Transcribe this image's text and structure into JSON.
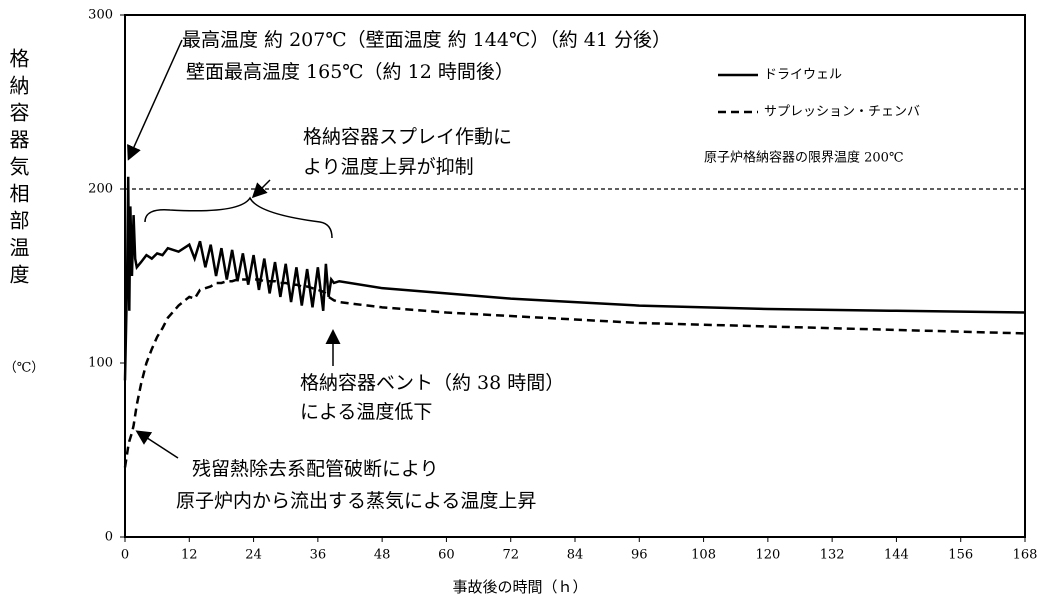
{
  "chart_data": {
    "type": "line",
    "y_label": "格納容器気相部温度",
    "y_unit": "（℃）",
    "x_label": "事故後の時間（ｈ）",
    "x": [
      0,
      0.4,
      0.6,
      0.8,
      1.0,
      1.3,
      1.6,
      1.9,
      2.2,
      3,
      4,
      5,
      6,
      7,
      8,
      10,
      12,
      13,
      14,
      15,
      16,
      17,
      18,
      19,
      20,
      21,
      22,
      23,
      24,
      25,
      26,
      27,
      28,
      29,
      30,
      31,
      32,
      33,
      34,
      35,
      36,
      37,
      37.5,
      38,
      38.5,
      39,
      40,
      48,
      60,
      72,
      84,
      96,
      120,
      144,
      168
    ],
    "series": [
      {
        "name": "ドライウェル",
        "color": "#000000",
        "line_style": "solid",
        "values": [
          90,
          150,
          207,
          130,
          190,
          150,
          185,
          160,
          155,
          158,
          162,
          160,
          163,
          162,
          166,
          164,
          168,
          160,
          170,
          155,
          168,
          150,
          166,
          148,
          165,
          147,
          163,
          145,
          162,
          142,
          160,
          140,
          158,
          138,
          157,
          135,
          155,
          133,
          154,
          132,
          155,
          130,
          157,
          138,
          148,
          146,
          147,
          143,
          140,
          137,
          135,
          133,
          131,
          130,
          129
        ]
      },
      {
        "name": "サプレッション・チェンバ",
        "color": "#000000",
        "line_style": "dashed",
        "values": [
          40,
          48,
          52,
          55,
          57,
          60,
          64,
          70,
          76,
          88,
          100,
          108,
          115,
          120,
          126,
          133,
          138,
          137,
          142,
          143,
          144,
          146,
          146,
          147,
          147,
          148,
          148,
          148,
          148,
          148,
          147,
          147,
          147,
          146,
          146,
          145,
          145,
          144,
          144,
          143,
          142,
          141,
          140,
          138,
          137,
          136,
          135,
          132,
          129,
          127,
          125,
          123,
          121,
          119,
          117
        ]
      }
    ],
    "reference_line": {
      "value": 200,
      "line_style": "dashed",
      "color": "#000000"
    },
    "annotations": [
      "最高温度 約 207℃（壁面温度 約 144℃）（約 41 分後）",
      "壁面最高温度 165℃（約 12 時間後）",
      "格納容器スプレイ作動に",
      "より温度上昇が抑制",
      "原子炉格納容器の限界温度 200℃",
      "格納容器ベント（約 38 時間）",
      "による温度低下",
      "残留熱除去系配管破断により",
      "原子炉内から流出する蒸気による温度上昇"
    ],
    "xlim": [
      0,
      168
    ],
    "xticks": [
      0,
      12,
      24,
      36,
      48,
      60,
      72,
      84,
      96,
      108,
      120,
      132,
      144,
      156,
      168
    ],
    "ylim": [
      0,
      300
    ],
    "yticks": [
      0,
      100,
      200,
      300
    ],
    "grid": false
  }
}
